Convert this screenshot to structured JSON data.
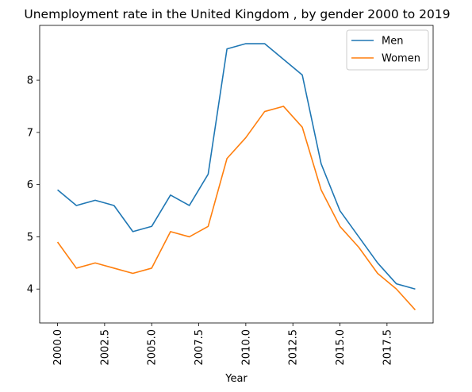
{
  "chart_data": {
    "type": "line",
    "title": "Unemployment rate in the United Kingdom , by gender 2000 to 2019",
    "xlabel": "Year",
    "ylabel": "",
    "xlim": [
      1999.05,
      2019.95
    ],
    "ylim": [
      3.35,
      9.05
    ],
    "x_ticks": [
      "2000.0",
      "2002.5",
      "2005.0",
      "2007.5",
      "2010.0",
      "2012.5",
      "2015.0",
      "2017.5"
    ],
    "y_ticks": [
      "4",
      "5",
      "6",
      "7",
      "8"
    ],
    "grid": false,
    "legend_position": "top-right",
    "x": [
      2000,
      2001,
      2002,
      2003,
      2004,
      2005,
      2006,
      2007,
      2008,
      2009,
      2010,
      2011,
      2012,
      2013,
      2014,
      2015,
      2016,
      2017,
      2018,
      2019
    ],
    "series": [
      {
        "name": "Men",
        "color": "#1f77b4",
        "values": [
          5.9,
          5.6,
          5.7,
          5.6,
          5.1,
          5.2,
          5.8,
          5.6,
          6.2,
          8.6,
          8.7,
          8.7,
          8.4,
          8.1,
          6.4,
          5.5,
          5.0,
          4.5,
          4.1,
          4.0
        ]
      },
      {
        "name": "Women",
        "color": "#ff7f0e",
        "values": [
          4.9,
          4.4,
          4.5,
          4.4,
          4.3,
          4.4,
          5.1,
          5.0,
          5.2,
          6.5,
          6.9,
          7.4,
          7.5,
          7.1,
          5.9,
          5.2,
          4.8,
          4.3,
          4.0,
          3.6
        ]
      }
    ]
  }
}
